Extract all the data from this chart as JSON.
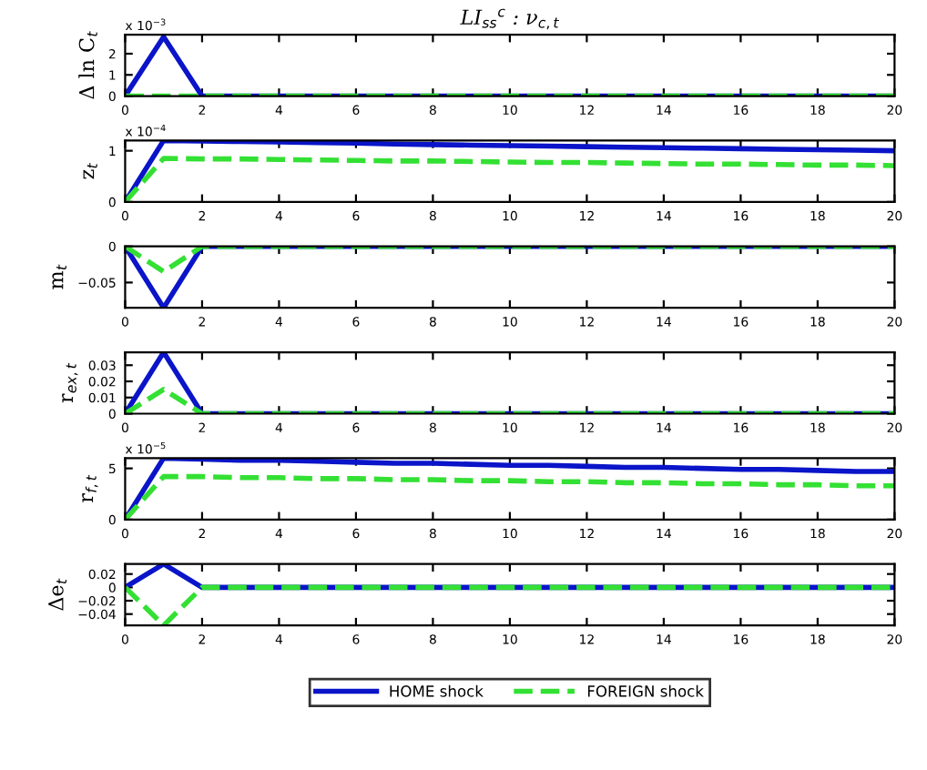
{
  "chart_data": [
    {
      "type": "line",
      "title": "LI$_{ss}$$^{c}$ : ν$_{c,t}$",
      "ylabel": "Δ ln C$_{t}$",
      "annotations": [
        "x 10$^{−3}$"
      ],
      "x": [
        0,
        1,
        2,
        3,
        4,
        5,
        6,
        7,
        8,
        9,
        10,
        11,
        12,
        13,
        14,
        15,
        16,
        17,
        18,
        19,
        20
      ],
      "series": [
        {
          "color": "#0a14c8",
          "line_style": "solid",
          "values": [
            0,
            2.8,
            0,
            0,
            0,
            0,
            0,
            0,
            0,
            0,
            0,
            0,
            0,
            0,
            0,
            0,
            0,
            0,
            0,
            0,
            0
          ]
        },
        {
          "color": "#33e033",
          "line_style": "dashed",
          "values": [
            0,
            0,
            0,
            0,
            0,
            0,
            0,
            0,
            0,
            0,
            0,
            0,
            0,
            0,
            0,
            0,
            0,
            0,
            0,
            0,
            0
          ]
        }
      ],
      "xlim": [
        0,
        20
      ],
      "xticks": [
        0,
        2,
        4,
        6,
        8,
        10,
        12,
        14,
        16,
        18,
        20
      ],
      "ylim": [
        0,
        2.9
      ],
      "yticks": [
        0,
        1,
        2
      ]
    },
    {
      "type": "line",
      "ylabel": "z$_{t}$",
      "annotations": [
        "x 10$^{−4}$"
      ],
      "x": [
        0,
        1,
        2,
        3,
        4,
        5,
        6,
        7,
        8,
        9,
        10,
        11,
        12,
        13,
        14,
        15,
        16,
        17,
        18,
        19,
        20
      ],
      "series": [
        {
          "color": "#0a14c8",
          "line_style": "solid",
          "values": [
            0,
            1.2,
            1.19,
            1.18,
            1.17,
            1.16,
            1.15,
            1.13,
            1.12,
            1.11,
            1.1,
            1.09,
            1.08,
            1.07,
            1.06,
            1.05,
            1.04,
            1.03,
            1.02,
            1.01,
            1.0
          ]
        },
        {
          "color": "#33e033",
          "line_style": "dashed",
          "values": [
            0,
            0.85,
            0.84,
            0.84,
            0.83,
            0.82,
            0.81,
            0.8,
            0.8,
            0.79,
            0.78,
            0.77,
            0.77,
            0.76,
            0.75,
            0.74,
            0.74,
            0.73,
            0.72,
            0.72,
            0.71
          ]
        }
      ],
      "xlim": [
        0,
        20
      ],
      "xticks": [
        0,
        2,
        4,
        6,
        8,
        10,
        12,
        14,
        16,
        18,
        20
      ],
      "ylim": [
        0,
        1.2
      ],
      "yticks": [
        0,
        1
      ]
    },
    {
      "type": "line",
      "ylabel": "m$_{t}$",
      "x": [
        0,
        1,
        2,
        3,
        4,
        5,
        6,
        7,
        8,
        9,
        10,
        11,
        12,
        13,
        14,
        15,
        16,
        17,
        18,
        19,
        20
      ],
      "series": [
        {
          "color": "#0a14c8",
          "line_style": "solid",
          "values": [
            0,
            -0.085,
            0,
            0,
            0,
            0,
            0,
            0,
            0,
            0,
            0,
            0,
            0,
            0,
            0,
            0,
            0,
            0,
            0,
            0,
            0
          ]
        },
        {
          "color": "#33e033",
          "line_style": "dashed",
          "values": [
            0,
            -0.035,
            0,
            0,
            0,
            0,
            0,
            0,
            0,
            0,
            0,
            0,
            0,
            0,
            0,
            0,
            0,
            0,
            0,
            0,
            0
          ]
        }
      ],
      "xlim": [
        0,
        20
      ],
      "xticks": [
        0,
        2,
        4,
        6,
        8,
        10,
        12,
        14,
        16,
        18,
        20
      ],
      "ylim": [
        -0.085,
        0
      ],
      "yticks": [
        {
          "value": -0.05,
          "label": "−0.05"
        },
        0
      ]
    },
    {
      "type": "line",
      "ylabel": "r$_{ex,t}$",
      "x": [
        0,
        1,
        2,
        3,
        4,
        5,
        6,
        7,
        8,
        9,
        10,
        11,
        12,
        13,
        14,
        15,
        16,
        17,
        18,
        19,
        20
      ],
      "series": [
        {
          "color": "#0a14c8",
          "line_style": "solid",
          "values": [
            0,
            0.038,
            0,
            0,
            0,
            0,
            0,
            0,
            0,
            0,
            0,
            0,
            0,
            0,
            0,
            0,
            0,
            0,
            0,
            0,
            0
          ]
        },
        {
          "color": "#33e033",
          "line_style": "dashed",
          "values": [
            0,
            0.015,
            0,
            0,
            0,
            0,
            0,
            0,
            0,
            0,
            0,
            0,
            0,
            0,
            0,
            0,
            0,
            0,
            0,
            0,
            0
          ]
        }
      ],
      "xlim": [
        0,
        20
      ],
      "xticks": [
        0,
        2,
        4,
        6,
        8,
        10,
        12,
        14,
        16,
        18,
        20
      ],
      "ylim": [
        0,
        0.038
      ],
      "yticks": [
        0,
        0.01,
        0.02,
        0.03
      ]
    },
    {
      "type": "line",
      "ylabel": "r$_{f,t}$",
      "annotations": [
        "x 10$^{−5}$"
      ],
      "x": [
        0,
        1,
        2,
        3,
        4,
        5,
        6,
        7,
        8,
        9,
        10,
        11,
        12,
        13,
        14,
        15,
        16,
        17,
        18,
        19,
        20
      ],
      "series": [
        {
          "color": "#0a14c8",
          "line_style": "solid",
          "values": [
            0,
            6.0,
            5.9,
            5.8,
            5.8,
            5.7,
            5.6,
            5.5,
            5.5,
            5.4,
            5.3,
            5.3,
            5.2,
            5.1,
            5.1,
            5.0,
            4.9,
            4.9,
            4.8,
            4.7,
            4.7
          ]
        },
        {
          "color": "#33e033",
          "line_style": "dashed",
          "values": [
            0,
            4.2,
            4.2,
            4.1,
            4.1,
            4.0,
            4.0,
            3.9,
            3.9,
            3.8,
            3.8,
            3.7,
            3.7,
            3.6,
            3.6,
            3.5,
            3.5,
            3.4,
            3.4,
            3.3,
            3.3
          ]
        }
      ],
      "xlim": [
        0,
        20
      ],
      "xticks": [
        0,
        2,
        4,
        6,
        8,
        10,
        12,
        14,
        16,
        18,
        20
      ],
      "ylim": [
        0,
        6
      ],
      "yticks": [
        0,
        5
      ]
    },
    {
      "type": "line",
      "ylabel": "Δe$_{t}$",
      "legend": "bottom",
      "x": [
        0,
        1,
        2,
        3,
        4,
        5,
        6,
        7,
        8,
        9,
        10,
        11,
        12,
        13,
        14,
        15,
        16,
        17,
        18,
        19,
        20
      ],
      "series": [
        {
          "name": "HOME shock",
          "color": "#0a14c8",
          "line_style": "solid",
          "values": [
            0,
            0.035,
            0,
            0,
            0,
            0,
            0,
            0,
            0,
            0,
            0,
            0,
            0,
            0,
            0,
            0,
            0,
            0,
            0,
            0,
            0
          ]
        },
        {
          "name": "FOREIGN shock",
          "color": "#33e033",
          "line_style": "dashed",
          "values": [
            0,
            -0.057,
            0,
            0,
            0,
            0,
            0,
            0,
            0,
            0,
            0,
            0,
            0,
            0,
            0,
            0,
            0,
            0,
            0,
            0,
            0
          ]
        }
      ],
      "xlim": [
        0,
        20
      ],
      "xticks": [
        0,
        2,
        4,
        6,
        8,
        10,
        12,
        14,
        16,
        18,
        20
      ],
      "ylim": [
        -0.057,
        0.035
      ],
      "yticks": [
        {
          "value": -0.04,
          "label": "−0.04"
        },
        {
          "value": -0.02,
          "label": "−0.02"
        },
        0,
        0.02
      ]
    }
  ]
}
